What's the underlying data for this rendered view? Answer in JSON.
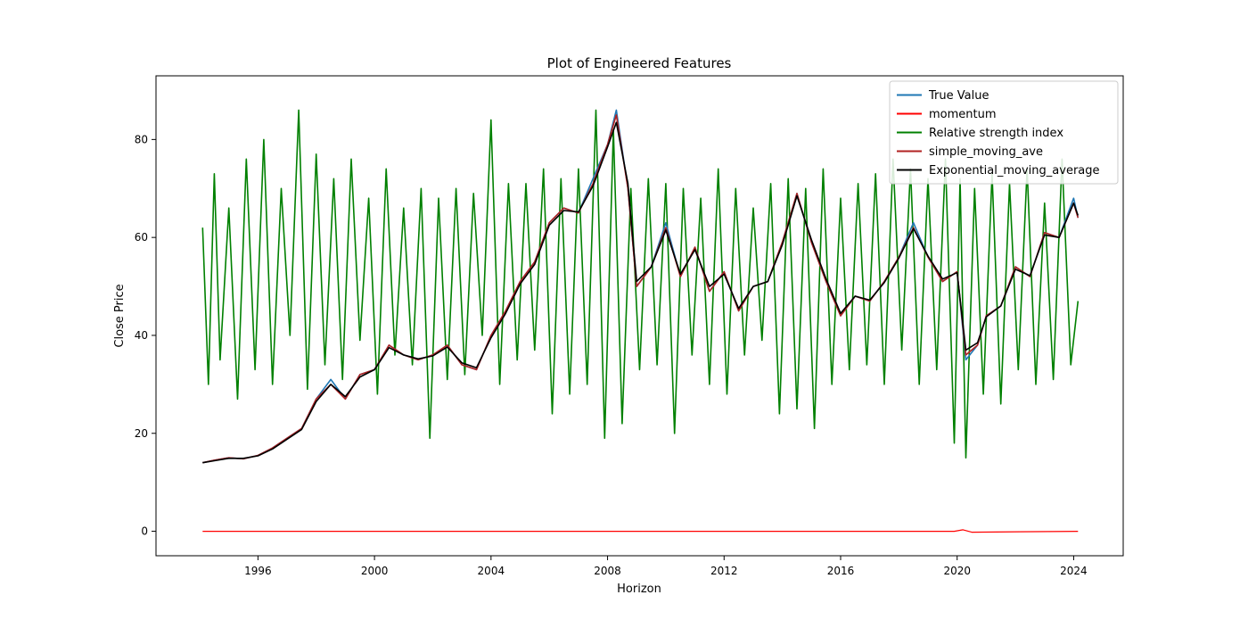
{
  "chart_data": {
    "type": "line",
    "title": "Plot of Engineered Features",
    "xlabel": "Horizon",
    "ylabel": "Close Price",
    "xlim": [
      1992.5,
      2025.7
    ],
    "ylim": [
      -5,
      93
    ],
    "x_ticks": [
      1996,
      2000,
      2004,
      2008,
      2012,
      2016,
      2020,
      2024
    ],
    "y_ticks": [
      0,
      20,
      40,
      60,
      80
    ],
    "grid": false,
    "legend_position": "top-right",
    "series": [
      {
        "name": "True Value",
        "color": "#1f77b4",
        "x": [
          1994.1,
          1994.5,
          1995.0,
          1995.5,
          1996.0,
          1996.5,
          1997.0,
          1997.5,
          1998.0,
          1998.5,
          1999.0,
          1999.5,
          2000.0,
          2000.5,
          2001.0,
          2001.5,
          2002.0,
          2002.5,
          2003.0,
          2003.5,
          2004.0,
          2004.5,
          2005.0,
          2005.5,
          2006.0,
          2006.5,
          2007.0,
          2007.5,
          2008.0,
          2008.3,
          2008.7,
          2009.0,
          2009.5,
          2010.0,
          2010.5,
          2011.0,
          2011.5,
          2012.0,
          2012.5,
          2013.0,
          2013.5,
          2014.0,
          2014.5,
          2015.0,
          2015.5,
          2016.0,
          2016.5,
          2017.0,
          2017.5,
          2018.0,
          2018.5,
          2019.0,
          2019.5,
          2020.0,
          2020.3,
          2020.7,
          2021.0,
          2021.5,
          2022.0,
          2022.5,
          2023.0,
          2023.5,
          2024.0,
          2024.15
        ],
        "y": [
          14,
          14.5,
          15,
          14.8,
          15.5,
          17,
          19,
          21,
          27,
          31,
          27,
          32,
          33,
          38,
          36,
          35,
          36,
          38,
          34,
          33,
          40,
          45,
          51,
          55,
          63,
          66,
          65,
          72,
          79,
          86,
          70,
          50,
          54,
          63,
          52,
          58,
          49,
          53,
          45,
          50,
          51,
          59,
          69,
          59,
          51,
          44,
          48,
          47,
          51,
          56,
          63,
          56,
          51,
          53,
          35,
          38,
          44,
          46,
          54,
          52,
          61,
          60,
          68,
          64
        ]
      },
      {
        "name": "momentum",
        "color": "#ff0000",
        "x": [
          1994.1,
          2000.0,
          2004.0,
          2008.0,
          2012.0,
          2016.0,
          2019.9,
          2020.2,
          2020.5,
          2024.15
        ],
        "y": [
          0,
          0,
          0,
          0,
          0,
          0,
          0,
          0.3,
          -0.2,
          0
        ]
      },
      {
        "name": "Relative strength index",
        "color": "#008000",
        "x": [
          1994.1,
          1994.3,
          1994.5,
          1994.7,
          1995.0,
          1995.3,
          1995.6,
          1995.9,
          1996.2,
          1996.5,
          1996.8,
          1997.1,
          1997.4,
          1997.7,
          1998.0,
          1998.3,
          1998.6,
          1998.9,
          1999.2,
          1999.5,
          1999.8,
          2000.1,
          2000.4,
          2000.7,
          2001.0,
          2001.3,
          2001.6,
          2001.9,
          2002.2,
          2002.5,
          2002.8,
          2003.1,
          2003.4,
          2003.7,
          2004.0,
          2004.3,
          2004.6,
          2004.9,
          2005.2,
          2005.5,
          2005.8,
          2006.1,
          2006.4,
          2006.7,
          2007.0,
          2007.3,
          2007.6,
          2007.9,
          2008.2,
          2008.5,
          2008.8,
          2009.1,
          2009.4,
          2009.7,
          2010.0,
          2010.3,
          2010.6,
          2010.9,
          2011.2,
          2011.5,
          2011.8,
          2012.1,
          2012.4,
          2012.7,
          2013.0,
          2013.3,
          2013.6,
          2013.9,
          2014.2,
          2014.5,
          2014.8,
          2015.1,
          2015.4,
          2015.7,
          2016.0,
          2016.3,
          2016.6,
          2016.9,
          2017.2,
          2017.5,
          2017.8,
          2018.1,
          2018.4,
          2018.7,
          2019.0,
          2019.3,
          2019.6,
          2019.9,
          2020.1,
          2020.3,
          2020.6,
          2020.9,
          2021.2,
          2021.5,
          2021.8,
          2022.1,
          2022.4,
          2022.7,
          2023.0,
          2023.3,
          2023.6,
          2023.9,
          2024.15
        ],
        "y": [
          62,
          30,
          73,
          35,
          66,
          27,
          76,
          33,
          80,
          30,
          70,
          40,
          86,
          29,
          77,
          34,
          72,
          31,
          76,
          39,
          68,
          28,
          74,
          36,
          66,
          34,
          70,
          19,
          68,
          31,
          70,
          32,
          69,
          40,
          84,
          30,
          71,
          35,
          71,
          37,
          74,
          24,
          72,
          28,
          74,
          30,
          86,
          19,
          82,
          22,
          70,
          33,
          72,
          34,
          71,
          20,
          70,
          36,
          68,
          30,
          74,
          28,
          70,
          36,
          66,
          39,
          71,
          24,
          72,
          25,
          70,
          21,
          74,
          30,
          68,
          33,
          71,
          34,
          73,
          30,
          76,
          37,
          74,
          30,
          72,
          33,
          76,
          18,
          72,
          15,
          70,
          28,
          73,
          26,
          71,
          33,
          74,
          30,
          67,
          31,
          76,
          34,
          47
        ]
      },
      {
        "name": "simple_moving_ave",
        "color": "#b22222",
        "x": [
          1994.1,
          1994.5,
          1995.0,
          1995.5,
          1996.0,
          1996.5,
          1997.0,
          1997.5,
          1998.0,
          1998.5,
          1999.0,
          1999.5,
          2000.0,
          2000.5,
          2001.0,
          2001.5,
          2002.0,
          2002.5,
          2003.0,
          2003.5,
          2004.0,
          2004.5,
          2005.0,
          2005.5,
          2006.0,
          2006.5,
          2007.0,
          2007.5,
          2008.0,
          2008.3,
          2008.7,
          2009.0,
          2009.5,
          2010.0,
          2010.5,
          2011.0,
          2011.5,
          2012.0,
          2012.5,
          2013.0,
          2013.5,
          2014.0,
          2014.5,
          2015.0,
          2015.5,
          2016.0,
          2016.5,
          2017.0,
          2017.5,
          2018.0,
          2018.5,
          2019.0,
          2019.5,
          2020.0,
          2020.3,
          2020.7,
          2021.0,
          2021.5,
          2022.0,
          2022.5,
          2023.0,
          2023.5,
          2024.0,
          2024.15
        ],
        "y": [
          14,
          14.5,
          15,
          14.8,
          15.5,
          17,
          19,
          21,
          27,
          30,
          27,
          32,
          33,
          38,
          36,
          35,
          36,
          38,
          34,
          33,
          40,
          45,
          51,
          55,
          63,
          66,
          65,
          71,
          79,
          85,
          70,
          50,
          54,
          62,
          52,
          58,
          49,
          53,
          45,
          50,
          51,
          59,
          69,
          59,
          51,
          44,
          48,
          47,
          51,
          56,
          62,
          56,
          51,
          53,
          36,
          38,
          44,
          46,
          54,
          52,
          61,
          60,
          67,
          64
        ]
      },
      {
        "name": "Exponential_moving_average",
        "color": "#000000",
        "x": [
          1994.1,
          1994.5,
          1995.0,
          1995.5,
          1996.0,
          1996.5,
          1997.0,
          1997.5,
          1998.0,
          1998.5,
          1999.0,
          1999.5,
          2000.0,
          2000.5,
          2001.0,
          2001.5,
          2002.0,
          2002.5,
          2003.0,
          2003.5,
          2004.0,
          2004.5,
          2005.0,
          2005.5,
          2006.0,
          2006.5,
          2007.0,
          2007.5,
          2008.0,
          2008.3,
          2008.7,
          2009.0,
          2009.5,
          2010.0,
          2010.5,
          2011.0,
          2011.5,
          2012.0,
          2012.5,
          2013.0,
          2013.5,
          2014.0,
          2014.5,
          2015.0,
          2015.5,
          2016.0,
          2016.5,
          2017.0,
          2017.5,
          2018.0,
          2018.5,
          2019.0,
          2019.5,
          2020.0,
          2020.3,
          2020.7,
          2021.0,
          2021.5,
          2022.0,
          2022.5,
          2023.0,
          2023.5,
          2024.0,
          2024.15
        ],
        "y": [
          14,
          14.4,
          14.9,
          14.9,
          15.4,
          16.8,
          18.8,
          20.8,
          26.5,
          30,
          27.5,
          31.5,
          33,
          37.5,
          36,
          35.2,
          35.8,
          37.6,
          34.4,
          33.4,
          39.5,
          44.5,
          50.5,
          54.5,
          62.5,
          65.5,
          65.2,
          70.5,
          78.5,
          83.5,
          71,
          51,
          54,
          61.5,
          52.5,
          57.5,
          50,
          52.5,
          45.5,
          50,
          51,
          58.5,
          68.5,
          59.5,
          51.5,
          44.5,
          48,
          47.2,
          50.8,
          55.8,
          61.8,
          56.2,
          51.5,
          52.8,
          37,
          38.5,
          43.8,
          46,
          53.5,
          52.2,
          60.5,
          60,
          67,
          64.5
        ]
      }
    ]
  }
}
